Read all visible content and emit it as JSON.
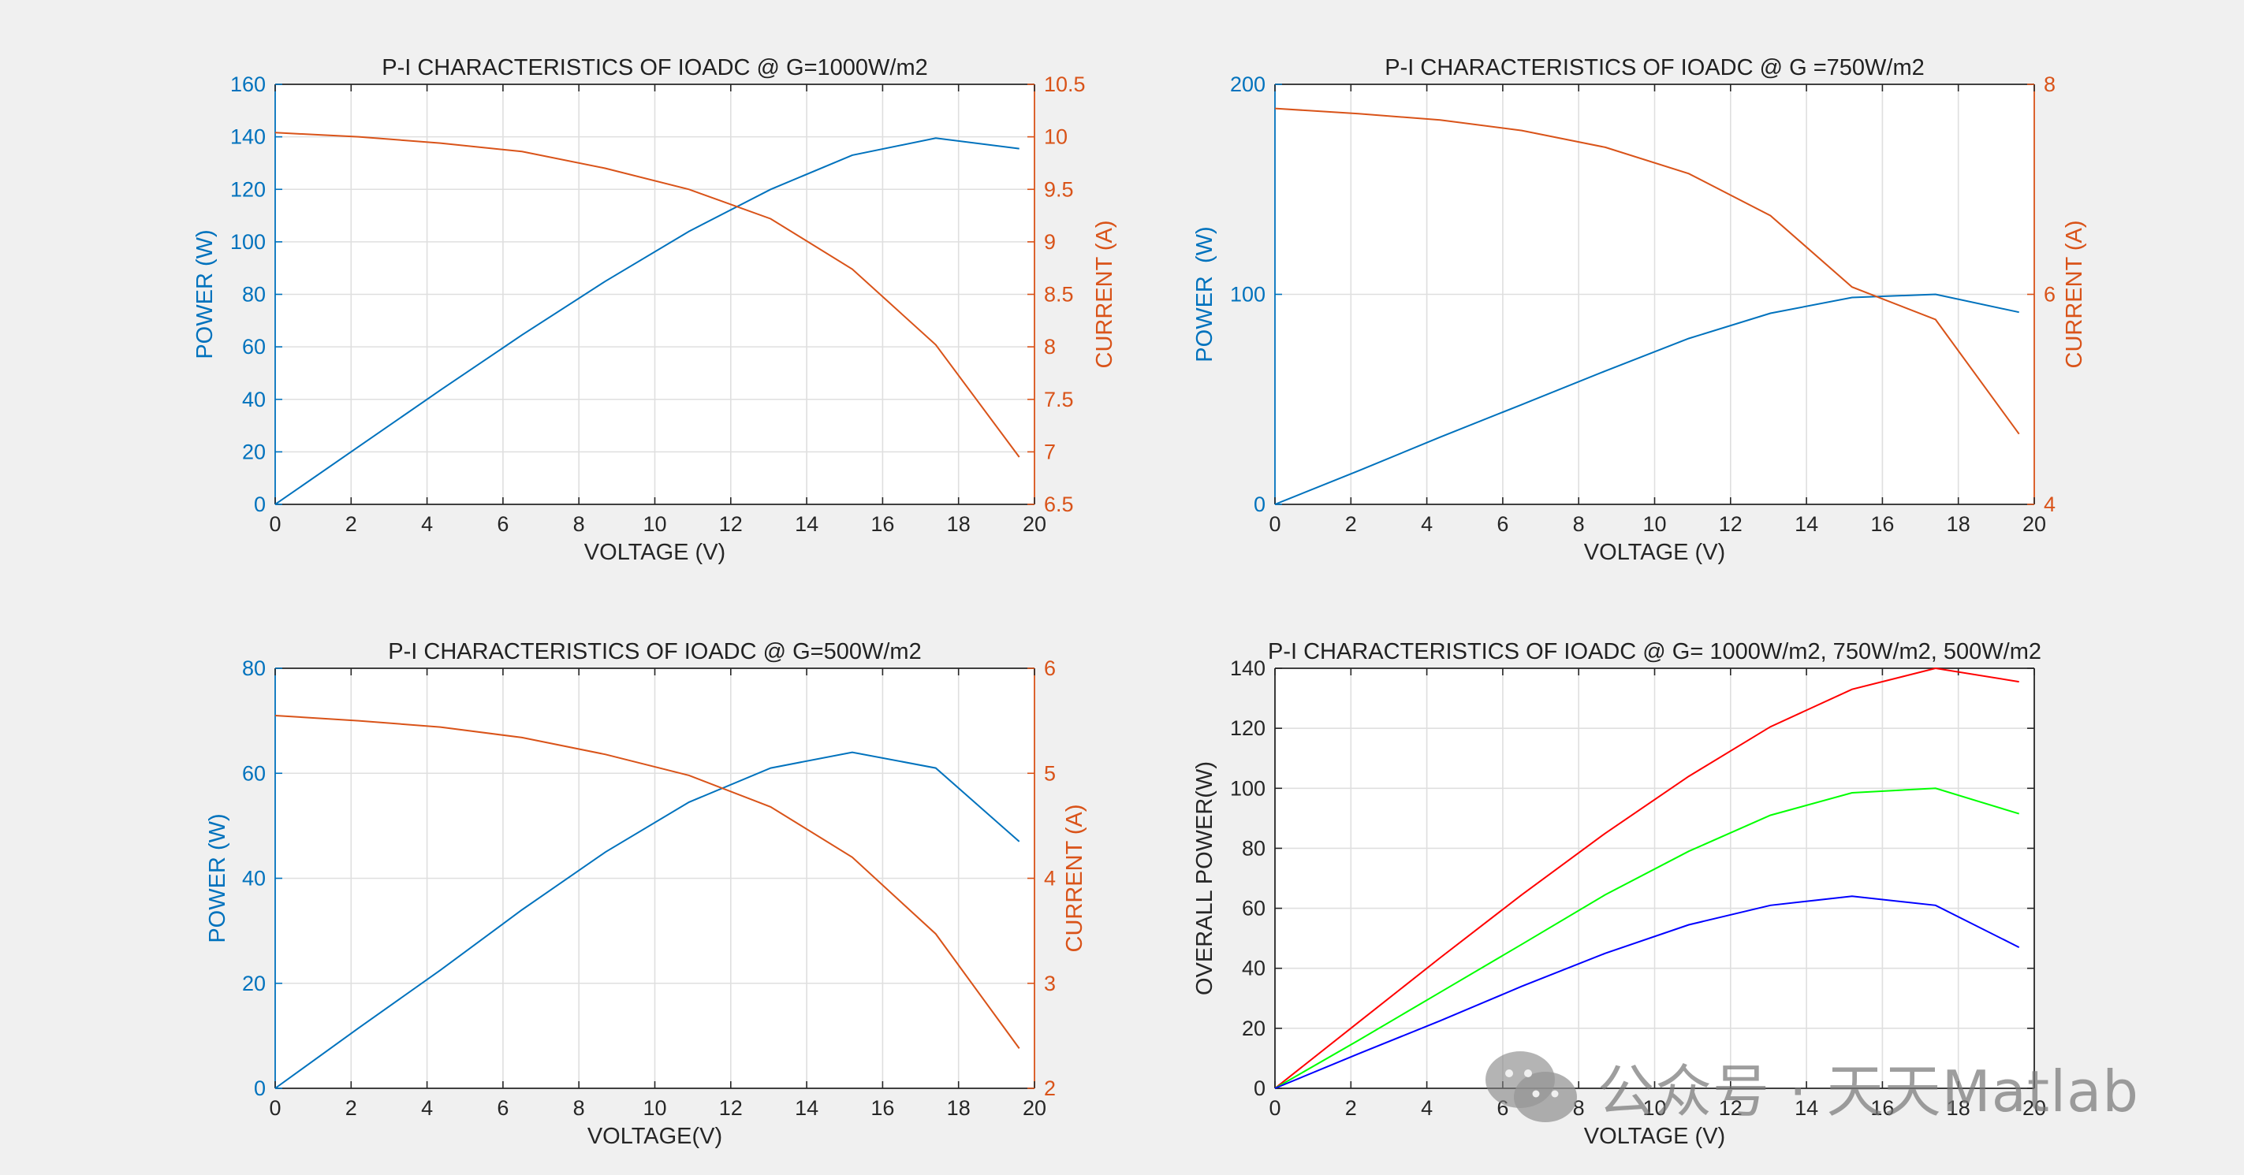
{
  "figure": {
    "background": "#f0f0f0"
  },
  "colors": {
    "left_axis": "#0072bd",
    "right_axis": "#d95319",
    "neutral_axis": "#262626",
    "title": "#212121",
    "grid": "#dfdfdf"
  },
  "watermark": {
    "text": "公众号 · 天天Matlab",
    "icon": "wechat-icon"
  },
  "chart_data": [
    {
      "id": "p1000",
      "type": "line",
      "title": "P-I CHARACTERISTICS OF IOADC @ G=1000W/m2",
      "xlabel": "VOLTAGE (V)",
      "ylabel": "POWER (W)",
      "ylabel_right": "CURRENT (A)",
      "xlim": [
        0,
        20
      ],
      "xticks": [
        "0",
        "2",
        "4",
        "6",
        "8",
        "10",
        "12",
        "14",
        "16",
        "18",
        "20"
      ],
      "ylim": [
        0,
        160
      ],
      "yticks": [
        "0",
        "20",
        "40",
        "60",
        "80",
        "100",
        "120",
        "140",
        "160"
      ],
      "ylim_right": [
        6.5,
        10.5
      ],
      "yticks_right": [
        "6.5",
        "7",
        "7.5",
        "8",
        "8.5",
        "9",
        "9.5",
        "10",
        "10.5"
      ],
      "grid": true,
      "series": [
        {
          "name": "Power",
          "axis": "left",
          "color": "#0072bd",
          "x": [
            0,
            2.2,
            4.35,
            6.5,
            8.7,
            10.9,
            13.05,
            15.2,
            17.4,
            19.6
          ],
          "y": [
            0,
            22,
            43.5,
            64.5,
            85,
            104,
            120,
            133,
            139.5,
            135.5
          ]
        },
        {
          "name": "Current",
          "axis": "right",
          "color": "#d95319",
          "x": [
            0,
            2.2,
            4.35,
            6.5,
            8.7,
            10.9,
            13.05,
            15.2,
            17.4,
            19.6
          ],
          "y": [
            10.04,
            10.0,
            9.94,
            9.86,
            9.7,
            9.5,
            9.22,
            8.74,
            8.02,
            6.95
          ]
        }
      ]
    },
    {
      "id": "p750",
      "type": "line",
      "title": "P-I CHARACTERISTICS OF IOADC @ G =750W/m2",
      "xlabel": "VOLTAGE (V)",
      "ylabel": "POWER  (W)",
      "ylabel_right": "CURRENT (A)",
      "xlim": [
        0,
        20
      ],
      "xticks": [
        "0",
        "2",
        "4",
        "6",
        "8",
        "10",
        "12",
        "14",
        "16",
        "18",
        "20"
      ],
      "ylim": [
        0,
        200
      ],
      "yticks": [
        "0",
        "100",
        "200"
      ],
      "ylim_right": [
        4,
        8
      ],
      "yticks_right": [
        "4",
        "6",
        "8"
      ],
      "grid": true,
      "series": [
        {
          "name": "Power",
          "axis": "left",
          "color": "#0072bd",
          "x": [
            0,
            2.2,
            4.35,
            6.5,
            8.7,
            10.9,
            13.05,
            15.2,
            17.4,
            19.6
          ],
          "y": [
            0,
            16,
            32,
            47.5,
            63.5,
            79,
            91,
            98.5,
            100,
            91.5
          ]
        },
        {
          "name": "Current",
          "axis": "right",
          "color": "#d95319",
          "x": [
            0,
            2.2,
            4.35,
            6.5,
            8.7,
            10.9,
            13.05,
            15.2,
            17.4,
            19.6
          ],
          "y": [
            7.77,
            7.72,
            7.66,
            7.56,
            7.4,
            7.15,
            6.75,
            6.07,
            5.76,
            4.67
          ]
        }
      ]
    },
    {
      "id": "p500",
      "type": "line",
      "title": "P-I CHARACTERISTICS OF IOADC @ G=500W/m2",
      "xlabel": "VOLTAGE(V)",
      "ylabel": "POWER (W)",
      "ylabel_right": "CURRENT (A)",
      "xlim": [
        0,
        20
      ],
      "xticks": [
        "0",
        "2",
        "4",
        "6",
        "8",
        "10",
        "12",
        "14",
        "16",
        "18",
        "20"
      ],
      "ylim": [
        0,
        80
      ],
      "yticks": [
        "0",
        "20",
        "40",
        "60",
        "80"
      ],
      "ylim_right": [
        2,
        6
      ],
      "yticks_right": [
        "2",
        "3",
        "4",
        "5",
        "6"
      ],
      "grid": true,
      "series": [
        {
          "name": "Power",
          "axis": "left",
          "color": "#0072bd",
          "x": [
            0,
            2.2,
            4.35,
            6.5,
            8.7,
            10.9,
            13.05,
            15.2,
            17.4,
            19.6
          ],
          "y": [
            0,
            11.5,
            22.5,
            34,
            45,
            54.5,
            61,
            64,
            61,
            47
          ]
        },
        {
          "name": "Current",
          "axis": "right",
          "color": "#d95319",
          "x": [
            0,
            2.2,
            4.35,
            6.5,
            8.7,
            10.9,
            13.05,
            15.2,
            17.4,
            19.6
          ],
          "y": [
            5.55,
            5.5,
            5.44,
            5.34,
            5.18,
            4.98,
            4.68,
            4.2,
            3.47,
            2.38
          ]
        }
      ]
    },
    {
      "id": "overall",
      "type": "line",
      "title": "P-I CHARACTERISTICS OF IOADC @ G= 1000W/m2, 750W/m2, 500W/m2",
      "xlabel": "VOLTAGE (V)",
      "ylabel": "OVERALL POWER(W)",
      "xlim": [
        0,
        20
      ],
      "xticks": [
        "0",
        "2",
        "4",
        "6",
        "8",
        "10",
        "12",
        "14",
        "16",
        "18",
        "20"
      ],
      "ylim": [
        0,
        140
      ],
      "yticks": [
        "0",
        "20",
        "40",
        "60",
        "80",
        "100",
        "120",
        "140"
      ],
      "grid": true,
      "series": [
        {
          "name": "G=1000W/m2",
          "axis": "left",
          "color": "#ff0000",
          "x": [
            0,
            2.2,
            4.35,
            6.5,
            8.7,
            10.9,
            13.05,
            15.2,
            17.4,
            19.6
          ],
          "y": [
            0,
            22,
            43.5,
            64.5,
            85,
            104,
            120.5,
            133,
            140,
            135.5
          ]
        },
        {
          "name": "G=750W/m2",
          "axis": "left",
          "color": "#00ff00",
          "x": [
            0,
            2.2,
            4.35,
            6.5,
            8.7,
            10.9,
            13.05,
            15.2,
            17.4,
            19.6
          ],
          "y": [
            0,
            16,
            32,
            48,
            64.5,
            79,
            91,
            98.5,
            100,
            91.5
          ]
        },
        {
          "name": "G=500W/m2",
          "axis": "left",
          "color": "#0000ff",
          "x": [
            0,
            2.2,
            4.35,
            6.5,
            8.7,
            10.9,
            13.05,
            15.2,
            17.4,
            19.6
          ],
          "y": [
            0,
            11.5,
            22.5,
            34,
            45,
            54.5,
            61,
            64,
            61,
            47
          ]
        }
      ]
    }
  ]
}
